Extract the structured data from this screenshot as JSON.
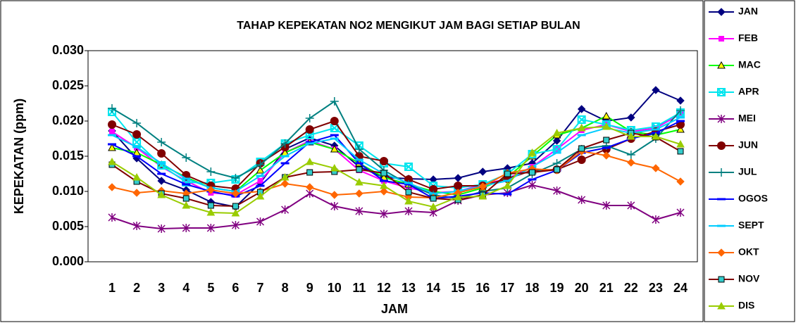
{
  "chart_data": {
    "type": "line",
    "title": "TAHAP KEPEKATAN NO2 MENGIKUT JAM BAGI SETIAP BULAN",
    "y_label": "KEPEKATAN (ppm)",
    "x_label": "JAM",
    "categories": [
      "1",
      "2",
      "3",
      "4",
      "5",
      "6",
      "7",
      "8",
      "9",
      "10",
      "11",
      "12",
      "13",
      "14",
      "15",
      "16",
      "17",
      "18",
      "19",
      "20",
      "21",
      "22",
      "23",
      "24"
    ],
    "ylim": [
      0,
      0.03
    ],
    "yticks": [
      {
        "value": 0,
        "label": "0.000"
      },
      {
        "value": 0.005,
        "label": "0.005"
      },
      {
        "value": 0.01,
        "label": "0.010"
      },
      {
        "value": 0.015,
        "label": "0.015"
      },
      {
        "value": 0.02,
        "label": "0.020"
      },
      {
        "value": 0.025,
        "label": "0.025"
      },
      {
        "value": 0.03,
        "label": "0.030"
      }
    ],
    "legend": "right",
    "series": [
      {
        "name": "JAN",
        "color": "#000080",
        "marker": "diamond",
        "values": [
          0.0186,
          0.0147,
          0.0115,
          0.0102,
          0.0085,
          0.0078,
          0.0112,
          0.016,
          0.0176,
          0.0165,
          0.0135,
          0.012,
          0.0118,
          0.0117,
          0.0119,
          0.0128,
          0.0133,
          0.014,
          0.0172,
          0.0217,
          0.02,
          0.0205,
          0.0244,
          0.0229
        ]
      },
      {
        "name": "FEB",
        "color": "#ff00ff",
        "marker": "square",
        "values": [
          0.0185,
          0.0162,
          0.0135,
          0.0115,
          0.0098,
          0.0095,
          0.0115,
          0.0155,
          0.0172,
          0.016,
          0.013,
          0.0115,
          0.0105,
          0.0098,
          0.01,
          0.011,
          0.0118,
          0.0135,
          0.016,
          0.0187,
          0.0195,
          0.0185,
          0.019,
          0.021
        ]
      },
      {
        "name": "MAC",
        "color": "#00ff00",
        "marker": "triangle",
        "values": [
          0.0162,
          0.0155,
          0.0138,
          0.012,
          0.0105,
          0.01,
          0.013,
          0.0155,
          0.017,
          0.016,
          0.014,
          0.012,
          0.011,
          0.01,
          0.0095,
          0.0105,
          0.012,
          0.015,
          0.018,
          0.019,
          0.0207,
          0.0185,
          0.018,
          0.0188
        ]
      },
      {
        "name": "APR",
        "color": "#00e5ee",
        "marker": "xsquare",
        "values": [
          0.0213,
          0.017,
          0.0137,
          0.0113,
          0.0112,
          0.0117,
          0.0142,
          0.0168,
          0.018,
          0.019,
          0.0165,
          0.014,
          0.0135,
          0.0108,
          0.0105,
          0.011,
          0.0125,
          0.0153,
          0.016,
          0.0202,
          0.0195,
          0.0187,
          0.0192,
          0.0212
        ]
      },
      {
        "name": "MEI",
        "color": "#800080",
        "marker": "star",
        "values": [
          0.0063,
          0.0051,
          0.0047,
          0.0048,
          0.0048,
          0.0052,
          0.0057,
          0.0074,
          0.0097,
          0.0079,
          0.0072,
          0.0068,
          0.0072,
          0.007,
          0.0087,
          0.0095,
          0.0098,
          0.0109,
          0.0101,
          0.0088,
          0.008,
          0.008,
          0.006,
          0.007
        ]
      },
      {
        "name": "JUN",
        "color": "#800000",
        "marker": "circle",
        "values": [
          0.0195,
          0.0181,
          0.0154,
          0.0123,
          0.0108,
          0.0104,
          0.014,
          0.0163,
          0.0188,
          0.02,
          0.015,
          0.0143,
          0.0117,
          0.0103,
          0.0108,
          0.0108,
          0.0118,
          0.013,
          0.0131,
          0.0145,
          0.016,
          0.0175,
          0.0185,
          0.0195
        ]
      },
      {
        "name": "JUL",
        "color": "#008080",
        "marker": "plus",
        "values": [
          0.0218,
          0.0197,
          0.017,
          0.0148,
          0.0128,
          0.0119,
          0.0138,
          0.0168,
          0.0204,
          0.0228,
          0.016,
          0.013,
          0.011,
          0.0095,
          0.009,
          0.01,
          0.0105,
          0.0125,
          0.014,
          0.016,
          0.0165,
          0.0152,
          0.0175,
          0.0215
        ]
      },
      {
        "name": "OGOS",
        "color": "#0000ff",
        "marker": "dash",
        "values": [
          0.0167,
          0.015,
          0.0125,
          0.011,
          0.01,
          0.0093,
          0.0108,
          0.014,
          0.017,
          0.018,
          0.014,
          0.0115,
          0.011,
          0.009,
          0.0093,
          0.0098,
          0.0096,
          0.0117,
          0.013,
          0.0155,
          0.0162,
          0.0175,
          0.0183,
          0.02
        ]
      },
      {
        "name": "SEPT",
        "color": "#00ccff",
        "marker": "dash",
        "values": [
          0.018,
          0.0163,
          0.014,
          0.0118,
          0.0105,
          0.01,
          0.0122,
          0.015,
          0.0168,
          0.0175,
          0.0145,
          0.0125,
          0.0112,
          0.0097,
          0.01,
          0.0108,
          0.0115,
          0.0135,
          0.0155,
          0.018,
          0.019,
          0.0183,
          0.0188,
          0.0205
        ]
      },
      {
        "name": "OKT",
        "color": "#ff6600",
        "marker": "diamond",
        "values": [
          0.0106,
          0.0098,
          0.0101,
          0.0097,
          0.0102,
          0.0097,
          0.01,
          0.0111,
          0.0106,
          0.0095,
          0.0097,
          0.01,
          0.0092,
          0.0091,
          0.0098,
          0.0107,
          0.0126,
          0.0132,
          0.013,
          0.0157,
          0.0151,
          0.0141,
          0.0133,
          0.0114
        ]
      },
      {
        "name": "NOV",
        "color": "#800000",
        "marker": "tsquare",
        "values": [
          0.0138,
          0.0114,
          0.0097,
          0.009,
          0.008,
          0.0079,
          0.0099,
          0.012,
          0.0127,
          0.0128,
          0.0131,
          0.0126,
          0.0099,
          0.009,
          0.0088,
          0.0095,
          0.0125,
          0.0127,
          0.0131,
          0.0161,
          0.0173,
          0.0183,
          0.0177,
          0.0157
        ]
      },
      {
        "name": "DIS",
        "color": "#99cc00",
        "marker": "triangle",
        "values": [
          0.0142,
          0.012,
          0.0095,
          0.008,
          0.007,
          0.0069,
          0.0093,
          0.012,
          0.0142,
          0.0133,
          0.0113,
          0.0108,
          0.0086,
          0.0078,
          0.0092,
          0.0093,
          0.0108,
          0.0155,
          0.0183,
          0.019,
          0.0192,
          0.0178,
          0.0178,
          0.0167
        ]
      }
    ]
  }
}
